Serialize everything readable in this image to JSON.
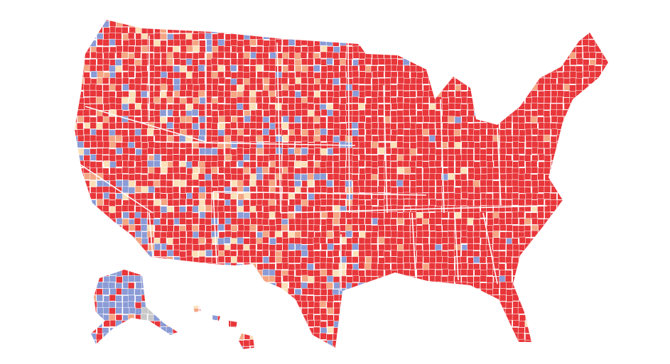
{
  "colors": [
    "#e8363a",
    "#f4a582",
    "#fbe0b8",
    "#8a9bd6",
    "#c8c8c8"
  ]
}
